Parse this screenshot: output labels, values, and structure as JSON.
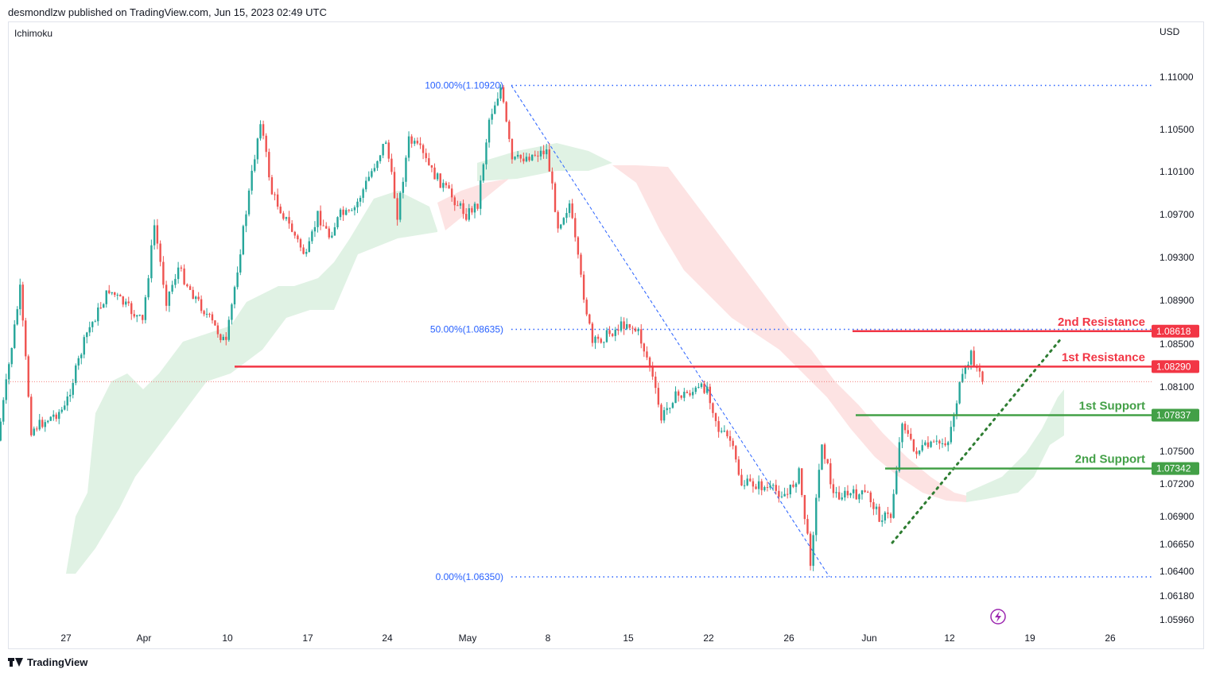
{
  "header": {
    "publisher": "desmondlzw published on TradingView.com, Jun 15, 2023 02:49 UTC"
  },
  "indicator": "Ichimoku",
  "currency": "USD",
  "footer": {
    "brand": "TradingView"
  },
  "colors": {
    "bull": "#26a69a",
    "bear": "#ef5350",
    "resistance": "#f23645",
    "support": "#43a047",
    "cloud_bull": "#e0f2e4",
    "cloud_bear": "#fde3e3",
    "fib": "#2962ff",
    "trend": "#2e7d32"
  },
  "chart_data": {
    "type": "candlestick",
    "yaxis": {
      "ticks": [
        "1.11000",
        "1.10500",
        "1.10100",
        "1.09700",
        "1.09300",
        "1.08900",
        "1.08500",
        "1.08100",
        "1.07500",
        "1.07200",
        "1.06900",
        "1.06650",
        "1.06400",
        "1.06180",
        "1.05960"
      ]
    },
    "xaxis": {
      "ticks": [
        "27",
        "Apr",
        "10",
        "17",
        "24",
        "May",
        "8",
        "15",
        "22",
        "26",
        "Jun",
        "12",
        "19",
        "26"
      ]
    },
    "fib_levels": [
      {
        "label": "100.00%(1.10920)",
        "price": 1.1092
      },
      {
        "label": "50.00%(1.08635)",
        "price": 1.08635
      },
      {
        "label": "0.00%(1.06350)",
        "price": 1.0635
      }
    ],
    "levels": [
      {
        "name": "2nd Resistance",
        "price": 1.08618,
        "tag": "1.08618",
        "type": "resistance"
      },
      {
        "name": "1st Resistance",
        "price": 1.0829,
        "tag": "1.08290",
        "type": "resistance"
      },
      {
        "name": "1st Support",
        "price": 1.07837,
        "tag": "1.07837",
        "type": "support"
      },
      {
        "name": "2nd Support",
        "price": 1.07342,
        "tag": "1.07342",
        "type": "support"
      }
    ],
    "series_path": [
      [
        "2023-03-21",
        1.076
      ],
      [
        "2023-03-23",
        1.09
      ],
      [
        "2023-03-24",
        1.077
      ],
      [
        "2023-03-27",
        1.079
      ],
      [
        "2023-03-29",
        1.086
      ],
      [
        "2023-03-31",
        1.09
      ],
      [
        "2023-04-03",
        1.087
      ],
      [
        "2023-04-04",
        1.096
      ],
      [
        "2023-04-05",
        1.089
      ],
      [
        "2023-04-06",
        1.092
      ],
      [
        "2023-04-07",
        1.09
      ],
      [
        "2023-04-10",
        1.085
      ],
      [
        "2023-04-11",
        1.092
      ],
      [
        "2023-04-12",
        1.099
      ],
      [
        "2023-04-13",
        1.106
      ],
      [
        "2023-04-14",
        1.099
      ],
      [
        "2023-04-17",
        1.093
      ],
      [
        "2023-04-18",
        1.097
      ],
      [
        "2023-04-19",
        1.095
      ],
      [
        "2023-04-20",
        1.097
      ],
      [
        "2023-04-21",
        1.097
      ],
      [
        "2023-04-24",
        1.104
      ],
      [
        "2023-04-25",
        1.097
      ],
      [
        "2023-04-26",
        1.104
      ],
      [
        "2023-04-27",
        1.103
      ],
      [
        "2023-04-28",
        1.101
      ],
      [
        "2023-05-01",
        1.097
      ],
      [
        "2023-05-02",
        1.098
      ],
      [
        "2023-05-03",
        1.106
      ],
      [
        "2023-05-04",
        1.109
      ],
      [
        "2023-05-05",
        1.102
      ],
      [
        "2023-05-08",
        1.103
      ],
      [
        "2023-05-09",
        1.096
      ],
      [
        "2023-05-10",
        1.098
      ],
      [
        "2023-05-11",
        1.091
      ],
      [
        "2023-05-12",
        1.085
      ],
      [
        "2023-05-15",
        1.087
      ],
      [
        "2023-05-16",
        1.086
      ],
      [
        "2023-05-17",
        1.083
      ],
      [
        "2023-05-18",
        1.078
      ],
      [
        "2023-05-19",
        1.08
      ],
      [
        "2023-05-22",
        1.081
      ],
      [
        "2023-05-23",
        1.077
      ],
      [
        "2023-05-24",
        1.076
      ],
      [
        "2023-05-25",
        1.072
      ],
      [
        "2023-05-26",
        1.072
      ],
      [
        "2023-05-29",
        1.071
      ],
      [
        "2023-05-30",
        1.073
      ],
      [
        "2023-05-31",
        1.065
      ],
      [
        "2023-06-01",
        1.076
      ],
      [
        "2023-06-02",
        1.071
      ],
      [
        "2023-06-05",
        1.071
      ],
      [
        "2023-06-06",
        1.069
      ],
      [
        "2023-06-07",
        1.069
      ],
      [
        "2023-06-08",
        1.078
      ],
      [
        "2023-06-09",
        1.075
      ],
      [
        "2023-06-12",
        1.076
      ],
      [
        "2023-06-13",
        1.081
      ],
      [
        "2023-06-14",
        1.084
      ],
      [
        "2023-06-15",
        1.0815
      ]
    ]
  }
}
